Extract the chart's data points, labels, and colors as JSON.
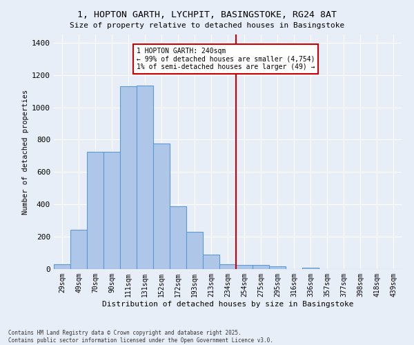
{
  "title1": "1, HOPTON GARTH, LYCHPIT, BASINGSTOKE, RG24 8AT",
  "title2": "Size of property relative to detached houses in Basingstoke",
  "xlabel": "Distribution of detached houses by size in Basingstoke",
  "ylabel": "Number of detached properties",
  "categories": [
    "29sqm",
    "49sqm",
    "70sqm",
    "90sqm",
    "111sqm",
    "131sqm",
    "152sqm",
    "172sqm",
    "193sqm",
    "213sqm",
    "234sqm",
    "254sqm",
    "275sqm",
    "295sqm",
    "316sqm",
    "336sqm",
    "357sqm",
    "377sqm",
    "398sqm",
    "418sqm",
    "439sqm"
  ],
  "values": [
    30,
    245,
    725,
    725,
    1130,
    1135,
    775,
    390,
    230,
    90,
    30,
    25,
    25,
    18,
    0,
    8,
    0,
    0,
    0,
    0,
    0
  ],
  "bar_color": "#aec6e8",
  "bar_edge_color": "#5b9bd5",
  "vline_color": "#cc0000",
  "vline_x": 10.5,
  "annotation_text": "1 HOPTON GARTH: 240sqm\n← 99% of detached houses are smaller (4,754)\n1% of semi-detached houses are larger (49) →",
  "ylim": [
    0,
    1450
  ],
  "yticks": [
    0,
    200,
    400,
    600,
    800,
    1000,
    1200,
    1400
  ],
  "bg_color": "#e8eef7",
  "grid_color": "#ffffff",
  "footer1": "Contains HM Land Registry data © Crown copyright and database right 2025.",
  "footer2": "Contains public sector information licensed under the Open Government Licence v3.0."
}
